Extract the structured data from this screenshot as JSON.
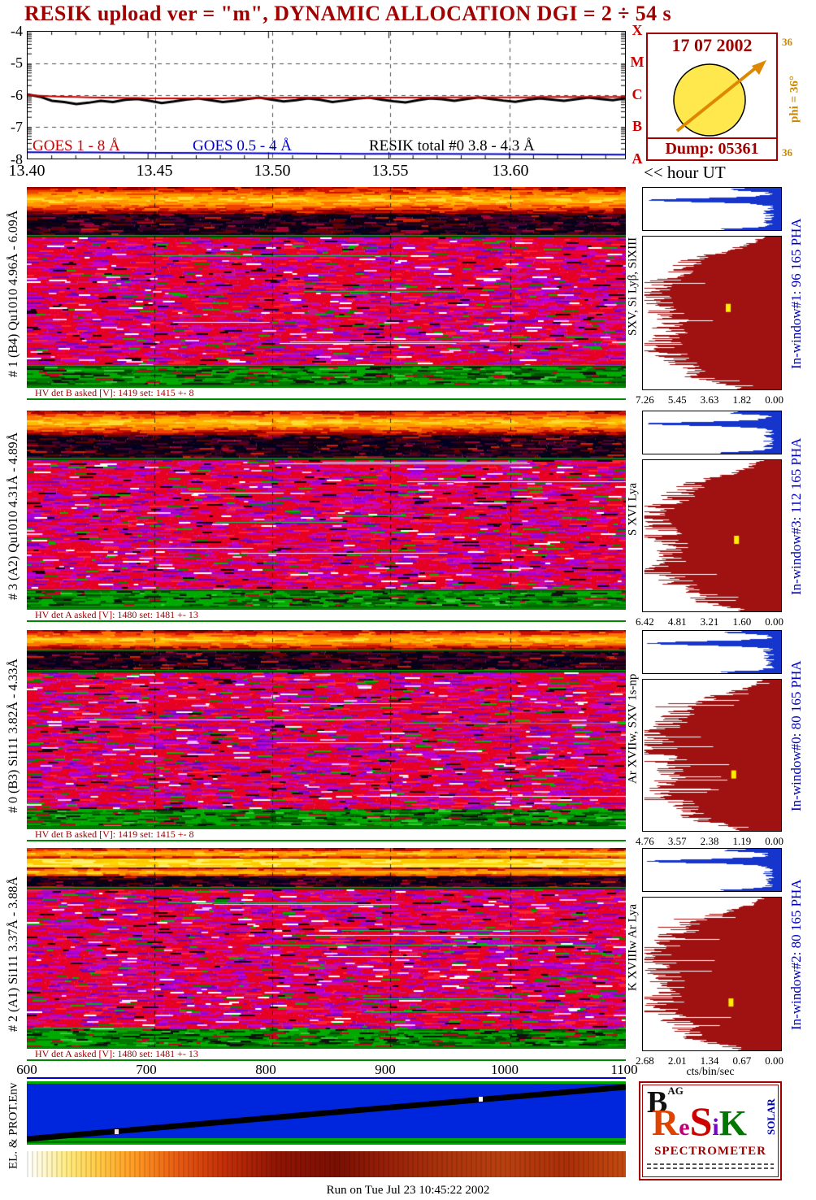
{
  "title": "RESIK upload ver = \"m\", DYNAMIC ALLOCATION  DGI =   2 ÷  54 s",
  "goes_plot": {
    "y_ticks": [
      "-4",
      "-5",
      "-6",
      "-7",
      "-8"
    ],
    "x_ticks": [
      "13.40",
      "13.45",
      "13.50",
      "13.55",
      "13.60"
    ],
    "class_letters": [
      "X",
      "M",
      "C",
      "B",
      "A"
    ],
    "hour_label": "<< hour UT",
    "legend": [
      {
        "label": "GOES 1 - 8 Å",
        "color": "#cc0000"
      },
      {
        "label": "GOES 0.5 - 4 Å",
        "color": "#0000cc"
      },
      {
        "label": "RESIK total #0  3.8 - 4.3 Å",
        "color": "#000000"
      }
    ]
  },
  "sun_box": {
    "date": "17 07 2002",
    "dump": "Dump: 05361",
    "phi_top": "36",
    "phi_label": "phi =  36°",
    "phi_bottom": "36"
  },
  "panels": [
    {
      "left_label": "# 1 (B4) Qu1010 4.96Å - 6.09Å",
      "hv_text": "HV det B asked [V]:  1419 set:  1415 +-    8",
      "line_label": "SXV, Si Lyβ, SiXIII",
      "inwindow_label": "In-window#1:   96 165  PHA",
      "pha_ticks": [
        "7.26",
        "5.45",
        "3.63",
        "1.82",
        "0.00"
      ]
    },
    {
      "left_label": "# 3 (A2) Qu1010 4.31Å - 4.89Å",
      "hv_text": "HV det A asked [V]:  1480 set:  1481 +-   13",
      "line_label": "S XVI Lya",
      "inwindow_label": "In-window#3:  112 165  PHA",
      "pha_ticks": [
        "6.42",
        "4.81",
        "3.21",
        "1.60",
        "0.00"
      ]
    },
    {
      "left_label": "# 0 (B3) Si111  3.82Å - 4.33Å",
      "hv_text": "HV det B asked [V]:  1419 set:  1415 +-    8",
      "line_label": "Ar XVIIw, SXV 1s-np",
      "inwindow_label": "In-window#0:   80 165  PHA",
      "pha_ticks": [
        "4.76",
        "3.57",
        "2.38",
        "1.19",
        "0.00"
      ]
    },
    {
      "left_label": "# 2 (A1) Si111 3.37Å - 3.88Å",
      "hv_text": "HV det A asked [V]:  1480 set:  1481 +-   13",
      "line_label": "K XVIIIw  Ar Lya",
      "inwindow_label": "In-window#2:   80 165  PHA",
      "pha_ticks": [
        "2.68",
        "2.01",
        "1.34",
        "0.67",
        "0.00"
      ]
    }
  ],
  "pha_units": "cts/bin/sec",
  "bottom_axis": [
    "600",
    "700",
    "800",
    "900",
    "1000",
    "1100"
  ],
  "env_panel": {
    "label": "EL. & PROT.Env"
  },
  "logo": {
    "mark": "B",
    "mark_sub": "AG",
    "letters": [
      "R",
      "e",
      "S",
      "i",
      "K"
    ],
    "side_text": "SOLAR",
    "caption": "SPECTROMETER"
  },
  "footer": "Run on Tue Jul 23 10:45:22 2002",
  "chart_data": [
    {
      "type": "line",
      "title": "GOES and RESIK X-ray flux, log10(W/m2)",
      "xlabel": "hour UT",
      "x_start": 13.4,
      "x_end": 13.648,
      "x_ticks": [
        13.4,
        13.45,
        13.5,
        13.55,
        13.6
      ],
      "ylim": [
        -8,
        -4
      ],
      "y_ticks": [
        -4,
        -5,
        -6,
        -7,
        -8
      ],
      "grid": "dashed",
      "goes_class_axis": [
        "X",
        "M",
        "C",
        "B",
        "A"
      ],
      "series": [
        {
          "name": "RESIK total #0 3.8 - 4.3 Å",
          "color": "#000000",
          "width": 3,
          "values": [
            -5.98,
            -6.05,
            -6.18,
            -6.22,
            -6.28,
            -6.24,
            -6.18,
            -6.22,
            -6.15,
            -6.12,
            -6.18,
            -6.25,
            -6.2,
            -6.14,
            -6.1,
            -6.16,
            -6.22,
            -6.18,
            -6.12,
            -6.08,
            -6.14,
            -6.2,
            -6.16,
            -6.1,
            -6.15,
            -6.22,
            -6.17,
            -6.11,
            -6.08,
            -6.14,
            -6.19,
            -6.23,
            -6.16,
            -6.1,
            -6.13,
            -6.18,
            -6.12,
            -6.07,
            -6.12,
            -6.17,
            -6.21,
            -6.15,
            -6.1,
            -6.14,
            -6.18,
            -6.13,
            -6.08,
            -6.12,
            -6.16,
            -6.1
          ]
        },
        {
          "name": "GOES 1 - 8 Å",
          "color": "#cc0000",
          "width": 2,
          "values": [
            -6.0,
            -6.02,
            -6.04,
            -6.05,
            -6.06,
            -6.07,
            -6.08,
            -6.08,
            -6.09,
            -6.09,
            -6.1,
            -6.1,
            -6.1,
            -6.1,
            -6.1,
            -6.1,
            -6.1,
            -6.09,
            -6.09,
            -6.09,
            -6.09,
            -6.08,
            -6.08,
            -6.08,
            -6.08,
            -6.08,
            -6.08,
            -6.08,
            -6.08,
            -6.08,
            -6.08,
            -6.08,
            -6.08,
            -6.08,
            -6.07,
            -6.07,
            -6.07,
            -6.07,
            -6.07,
            -6.07,
            -6.07,
            -6.07,
            -6.06,
            -6.06,
            -6.06,
            -6.06,
            -6.06,
            -6.06,
            -6.06,
            -6.06
          ]
        },
        {
          "name": "GOES 0.5 - 4 Å",
          "color": "#0000cc",
          "width": 2,
          "values": [
            -7.8,
            -7.81,
            -7.82,
            -7.83,
            -7.84,
            -7.85,
            -7.85,
            -7.86,
            -7.87,
            -7.88
          ]
        }
      ]
    },
    {
      "type": "heatmap",
      "name": "# 1 (B4) Qu1010",
      "wavelength_range": "4.96Å - 6.09Å",
      "x_range": "13.40 - 13.65 hour UT",
      "hv": "det B asked 1419 V, set 1415 +- 8",
      "in_window": "#1: 96 165 PHA",
      "pha_axis": {
        "ticks": [
          7.26,
          5.45,
          3.63,
          1.82,
          0.0
        ],
        "units": "cts/bin/sec"
      }
    },
    {
      "type": "heatmap",
      "name": "# 3 (A2) Qu1010",
      "wavelength_range": "4.31Å - 4.89Å",
      "x_range": "13.40 - 13.65 hour UT",
      "hv": "det A asked 1480 V, set 1481 +- 13",
      "in_window": "#3: 112 165 PHA",
      "pha_axis": {
        "ticks": [
          6.42,
          4.81,
          3.21,
          1.6,
          0.0
        ],
        "units": "cts/bin/sec"
      }
    },
    {
      "type": "heatmap",
      "name": "# 0 (B3) Si111",
      "wavelength_range": "3.82Å - 4.33Å",
      "x_range": "13.40 - 13.65 hour UT",
      "hv": "det B asked 1419 V, set 1415 +- 8",
      "in_window": "#0: 80 165 PHA",
      "pha_axis": {
        "ticks": [
          4.76,
          3.57,
          2.38,
          1.19,
          0.0
        ],
        "units": "cts/bin/sec"
      }
    },
    {
      "type": "heatmap",
      "name": "# 2 (A1) Si111",
      "wavelength_range": "3.37Å - 3.88Å",
      "x_range": "13.40 - 13.65 hour UT",
      "hv": "det A asked 1480 V, set 1481 +- 13",
      "in_window": "#2: 80 165 PHA",
      "pha_axis": {
        "ticks": [
          2.68,
          2.01,
          1.34,
          0.67,
          0.0
        ],
        "units": "cts/bin/sec"
      }
    },
    {
      "type": "heatmap",
      "name": "EL. & PROT. Env",
      "x_axis_ticks": [
        600,
        700,
        800,
        900,
        1000,
        1100
      ],
      "description": "blue background panel with black diagonal track descending left-to-right in time axis, green border bands, thermal color strip below"
    }
  ]
}
